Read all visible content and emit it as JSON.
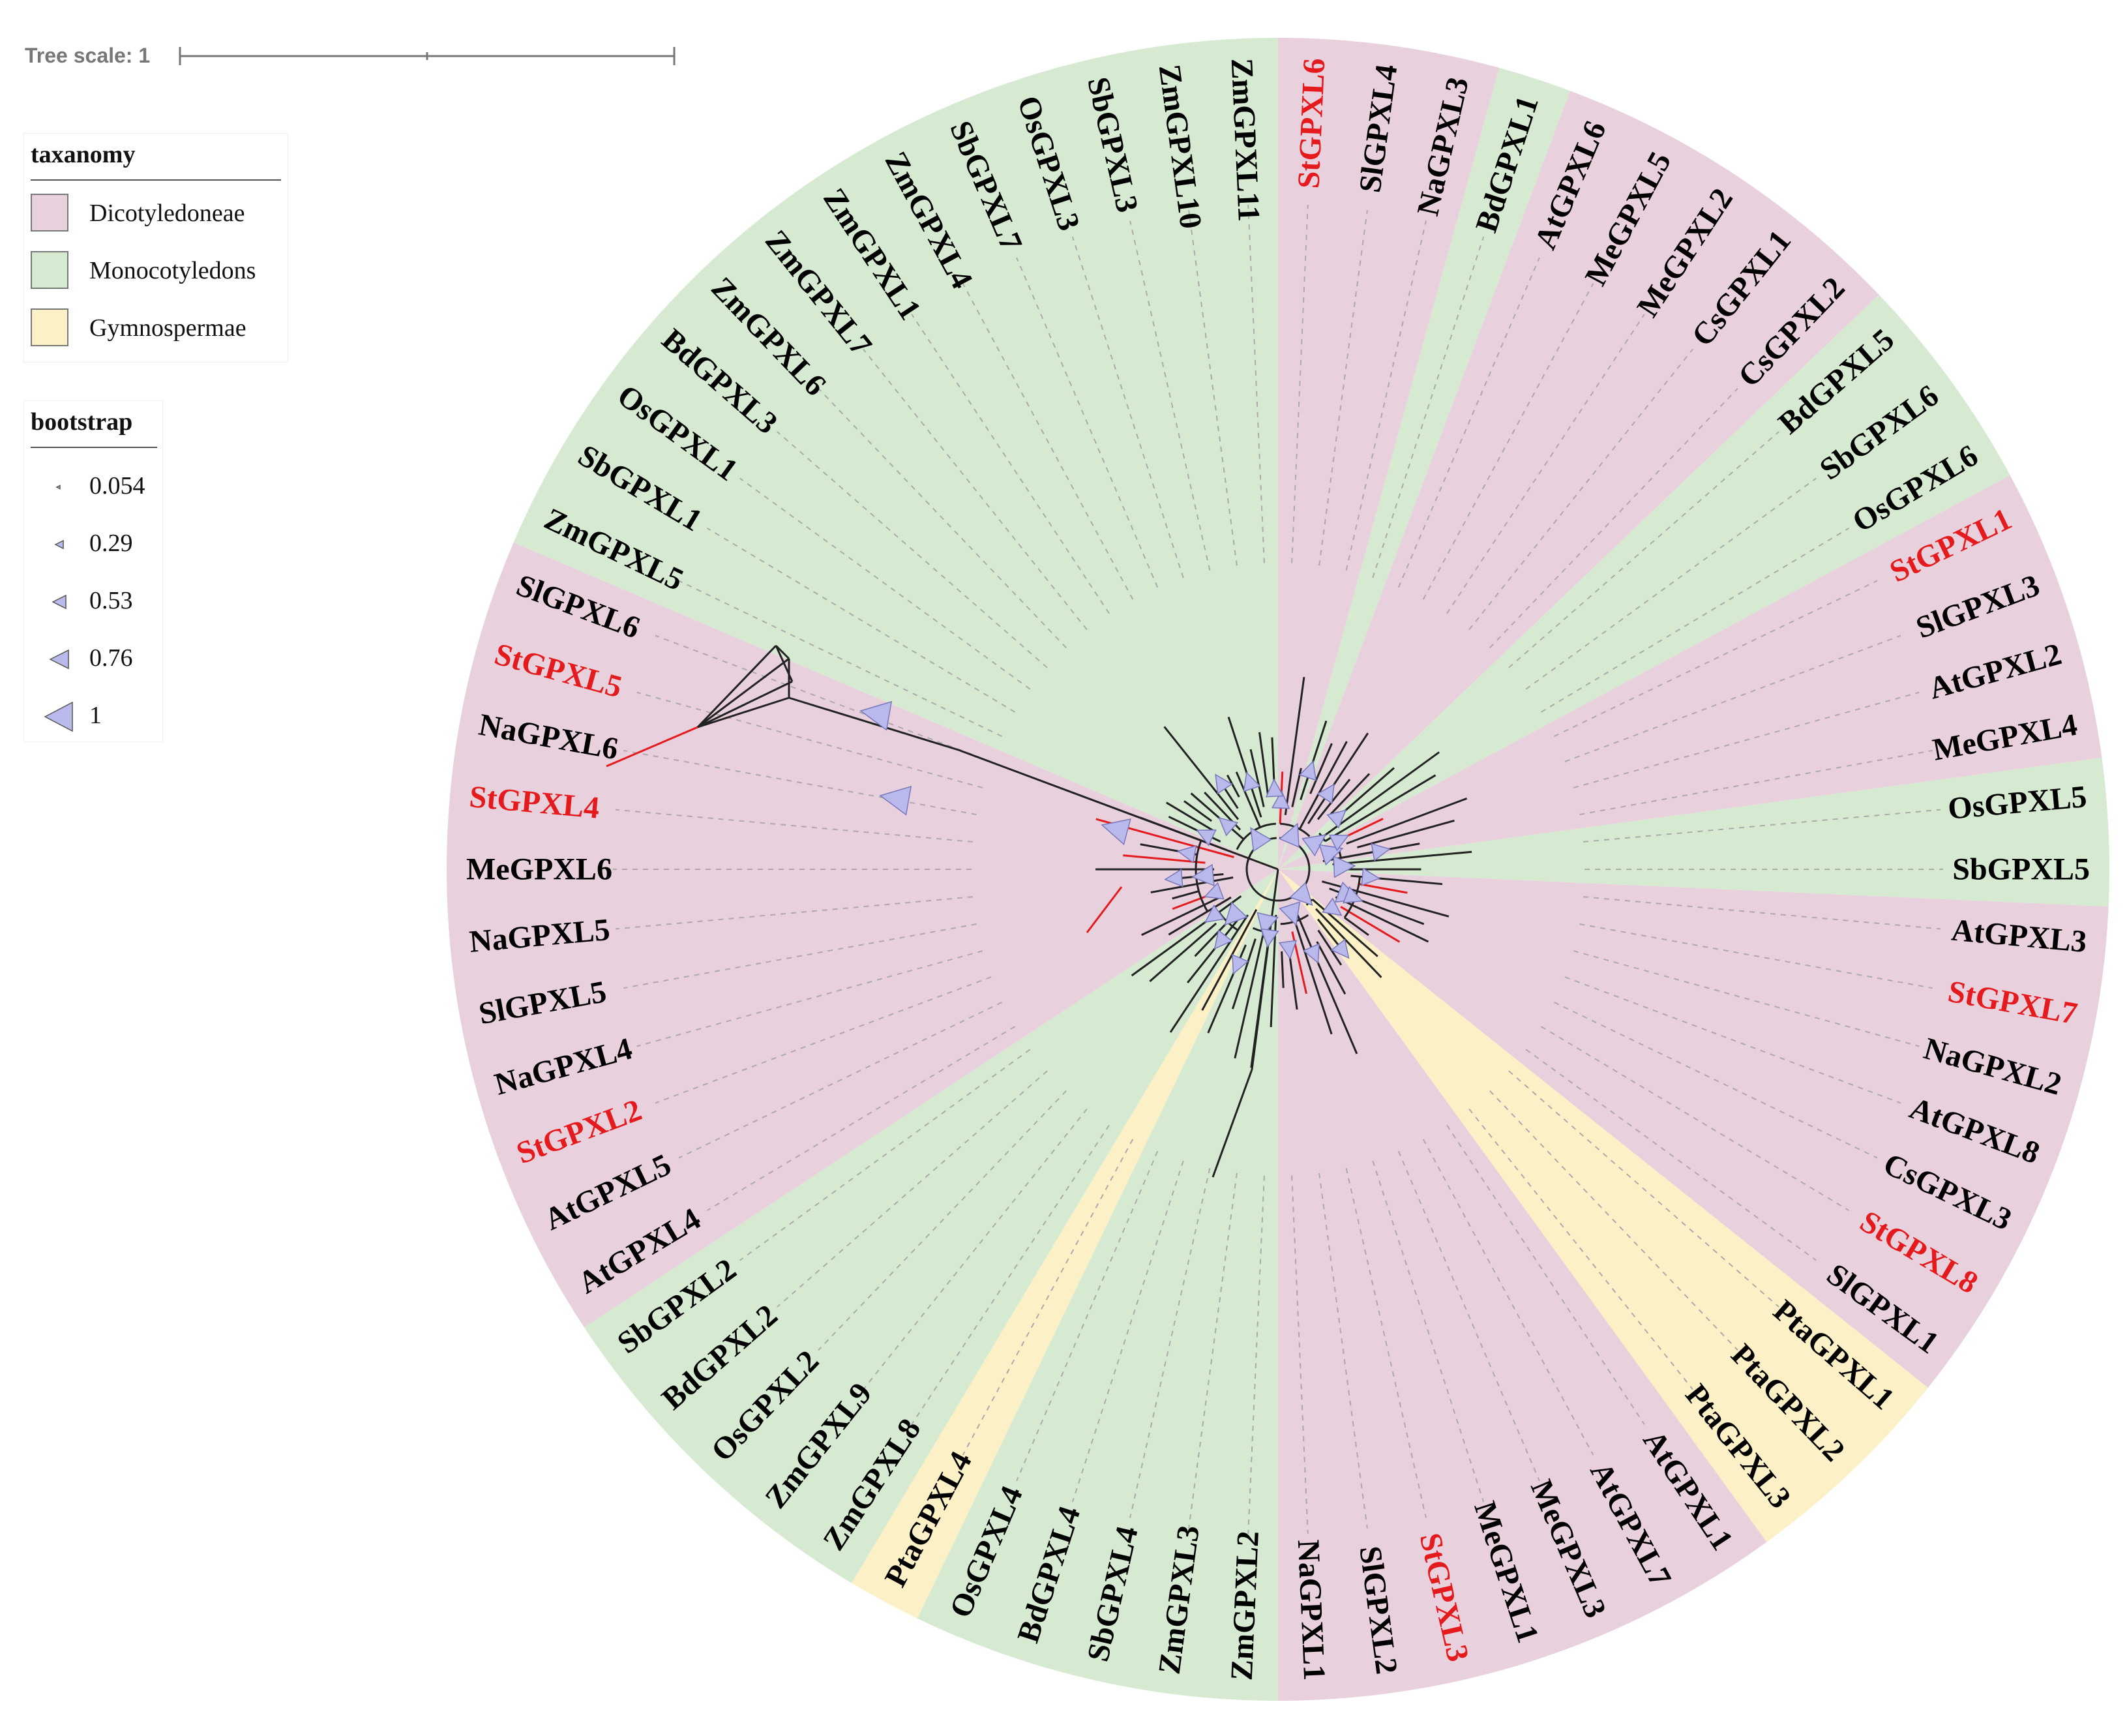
{
  "scale": {
    "label": "Tree scale: 1"
  },
  "colors": {
    "dicot": "#e8d0dc",
    "monocot": "#d6ead2",
    "gymno": "#fcf0c6",
    "highlight": "#e41a1c",
    "default_label": "#000000",
    "bootstrap_fill": "#b9b9ec",
    "guide_line": "#aaaaaa",
    "branch": "#222222"
  },
  "taxonomy_legend": {
    "title": "taxanomy",
    "items": [
      {
        "key": "dicot",
        "label": "Dicotyledoneae"
      },
      {
        "key": "monocot",
        "label": "Monocotyledons"
      },
      {
        "key": "gymno",
        "label": "Gymnospermae"
      }
    ]
  },
  "bootstrap_legend": {
    "title": "bootstrap",
    "items": [
      {
        "value": 0.054,
        "label": "0.054"
      },
      {
        "value": 0.29,
        "label": "0.29"
      },
      {
        "value": 0.53,
        "label": "0.53"
      },
      {
        "value": 0.76,
        "label": "0.76"
      },
      {
        "value": 1,
        "label": "1"
      }
    ]
  },
  "tree": {
    "leaves": [
      {
        "name": "StGPXL6",
        "group": "dicot",
        "highlight": true
      },
      {
        "name": "SlGPXL4",
        "group": "dicot",
        "highlight": false
      },
      {
        "name": "NaGPXL3",
        "group": "dicot",
        "highlight": false
      },
      {
        "name": "BdGPXL1",
        "group": "monocot",
        "highlight": false
      },
      {
        "name": "AtGPXL6",
        "group": "dicot",
        "highlight": false
      },
      {
        "name": "MeGPXL5",
        "group": "dicot",
        "highlight": false
      },
      {
        "name": "MeGPXL2",
        "group": "dicot",
        "highlight": false
      },
      {
        "name": "CsGPXL1",
        "group": "dicot",
        "highlight": false
      },
      {
        "name": "CsGPXL2",
        "group": "dicot",
        "highlight": false
      },
      {
        "name": "BdGPXL5",
        "group": "monocot",
        "highlight": false
      },
      {
        "name": "SbGPXL6",
        "group": "monocot",
        "highlight": false
      },
      {
        "name": "OsGPXL6",
        "group": "monocot",
        "highlight": false
      },
      {
        "name": "StGPXL1",
        "group": "dicot",
        "highlight": true
      },
      {
        "name": "SlGPXL3",
        "group": "dicot",
        "highlight": false
      },
      {
        "name": "AtGPXL2",
        "group": "dicot",
        "highlight": false
      },
      {
        "name": "MeGPXL4",
        "group": "dicot",
        "highlight": false
      },
      {
        "name": "OsGPXL5",
        "group": "monocot",
        "highlight": false
      },
      {
        "name": "SbGPXL5",
        "group": "monocot",
        "highlight": false
      },
      {
        "name": "AtGPXL3",
        "group": "dicot",
        "highlight": false
      },
      {
        "name": "StGPXL7",
        "group": "dicot",
        "highlight": true
      },
      {
        "name": "NaGPXL2",
        "group": "dicot",
        "highlight": false
      },
      {
        "name": "AtGPXL8",
        "group": "dicot",
        "highlight": false
      },
      {
        "name": "CsGPXL3",
        "group": "dicot",
        "highlight": false
      },
      {
        "name": "StGPXL8",
        "group": "dicot",
        "highlight": true
      },
      {
        "name": "SlGPXL1",
        "group": "dicot",
        "highlight": false
      },
      {
        "name": "PtaGPXL1",
        "group": "gymno",
        "highlight": false
      },
      {
        "name": "PtaGPXL2",
        "group": "gymno",
        "highlight": false
      },
      {
        "name": "PtaGPXL3",
        "group": "gymno",
        "highlight": false
      },
      {
        "name": "AtGPXL1",
        "group": "dicot",
        "highlight": false
      },
      {
        "name": "AtGPXL7",
        "group": "dicot",
        "highlight": false
      },
      {
        "name": "MeGPXL3",
        "group": "dicot",
        "highlight": false
      },
      {
        "name": "MeGPXL1",
        "group": "dicot",
        "highlight": false
      },
      {
        "name": "StGPXL3",
        "group": "dicot",
        "highlight": true
      },
      {
        "name": "SlGPXL2",
        "group": "dicot",
        "highlight": false
      },
      {
        "name": "NaGPXL1",
        "group": "dicot",
        "highlight": false
      },
      {
        "name": "ZmGPXL2",
        "group": "monocot",
        "highlight": false
      },
      {
        "name": "ZmGPXL3",
        "group": "monocot",
        "highlight": false
      },
      {
        "name": "SbGPXL4",
        "group": "monocot",
        "highlight": false
      },
      {
        "name": "BdGPXL4",
        "group": "monocot",
        "highlight": false
      },
      {
        "name": "OsGPXL4",
        "group": "monocot",
        "highlight": false
      },
      {
        "name": "PtaGPXL4",
        "group": "gymno",
        "highlight": false
      },
      {
        "name": "ZmGPXL8",
        "group": "monocot",
        "highlight": false
      },
      {
        "name": "ZmGPXL9",
        "group": "monocot",
        "highlight": false
      },
      {
        "name": "OsGPXL2",
        "group": "monocot",
        "highlight": false
      },
      {
        "name": "BdGPXL2",
        "group": "monocot",
        "highlight": false
      },
      {
        "name": "SbGPXL2",
        "group": "monocot",
        "highlight": false
      },
      {
        "name": "AtGPXL4",
        "group": "dicot",
        "highlight": false
      },
      {
        "name": "AtGPXL5",
        "group": "dicot",
        "highlight": false
      },
      {
        "name": "StGPXL2",
        "group": "dicot",
        "highlight": true
      },
      {
        "name": "NaGPXL4",
        "group": "dicot",
        "highlight": false
      },
      {
        "name": "SlGPXL5",
        "group": "dicot",
        "highlight": false
      },
      {
        "name": "NaGPXL5",
        "group": "dicot",
        "highlight": false
      },
      {
        "name": "MeGPXL6",
        "group": "dicot",
        "highlight": false
      },
      {
        "name": "StGPXL4",
        "group": "dicot",
        "highlight": true
      },
      {
        "name": "NaGPXL6",
        "group": "dicot",
        "highlight": false
      },
      {
        "name": "StGPXL5",
        "group": "dicot",
        "highlight": true
      },
      {
        "name": "SlGPXL6",
        "group": "dicot",
        "highlight": false
      },
      {
        "name": "ZmGPXL5",
        "group": "monocot",
        "highlight": false
      },
      {
        "name": "SbGPXL1",
        "group": "monocot",
        "highlight": false
      },
      {
        "name": "OsGPXL1",
        "group": "monocot",
        "highlight": false
      },
      {
        "name": "BdGPXL3",
        "group": "monocot",
        "highlight": false
      },
      {
        "name": "ZmGPXL6",
        "group": "monocot",
        "highlight": false
      },
      {
        "name": "ZmGPXL7",
        "group": "monocot",
        "highlight": false
      },
      {
        "name": "ZmGPXL1",
        "group": "monocot",
        "highlight": false
      },
      {
        "name": "ZmGPXL4",
        "group": "monocot",
        "highlight": false
      },
      {
        "name": "SbGPXL7",
        "group": "monocot",
        "highlight": false
      },
      {
        "name": "OsGPXL3",
        "group": "monocot",
        "highlight": false
      },
      {
        "name": "SbGPXL3",
        "group": "monocot",
        "highlight": false
      },
      {
        "name": "ZmGPXL10",
        "group": "monocot",
        "highlight": false
      },
      {
        "name": "ZmGPXL11",
        "group": "monocot",
        "highlight": false
      }
    ]
  }
}
